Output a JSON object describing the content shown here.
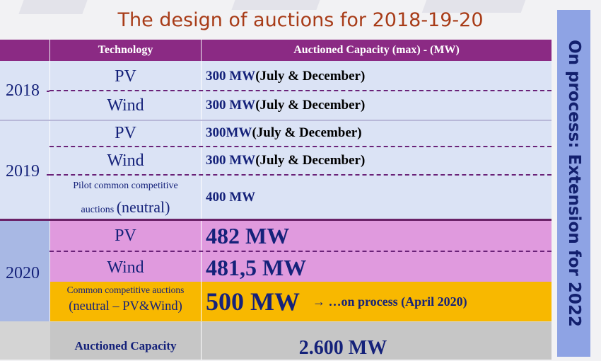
{
  "title": "The design of auctions for 2018-19-20",
  "side_note": "On process: Extension for 2022",
  "headers": {
    "technology": "Technology",
    "capacity": "Auctioned Capacity (max) - (MW)"
  },
  "years": {
    "y2018": "2018",
    "y2019": "2019",
    "y2020": "2020"
  },
  "rows": [
    {
      "tech": "PV",
      "cap_value": "300 MW",
      "cap_note": " (July & December)"
    },
    {
      "tech": "Wind",
      "cap_value": "300 MW",
      "cap_note": " (July & December)"
    },
    {
      "tech": "PV",
      "cap_value": "300MW",
      "cap_note": " (July & December)"
    },
    {
      "tech": "Wind",
      "cap_value": "300 MW",
      "cap_note": " (July & December)"
    },
    {
      "tech_line1": "Pilot common competitive",
      "tech_line2_small": "auctions ",
      "tech_line2_big": "(neutral)",
      "cap_value": "400 MW"
    },
    {
      "tech": "PV",
      "cap_value": "482 MW"
    },
    {
      "tech": "Wind",
      "cap_value": "481,5 MW"
    },
    {
      "tech_line1": "Common competitive auctions",
      "tech_line2": "(neutral – PV&Wind)",
      "cap_value": "500 MW",
      "cap_note": "→ …on process (April 2020)"
    }
  ],
  "total": {
    "label": "Auctioned Capacity",
    "value": "2.600 MW"
  }
}
